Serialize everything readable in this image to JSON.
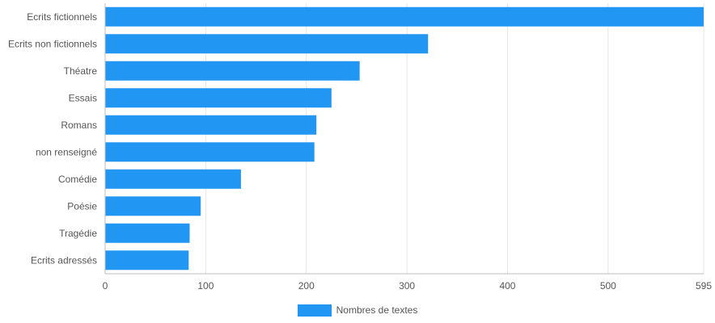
{
  "chart_data": {
    "type": "bar",
    "orientation": "horizontal",
    "categories": [
      "Ecrits fictionnels",
      "Ecrits non fictionnels",
      "Théatre",
      "Essais",
      "Romans",
      "non renseigné",
      "Comédie",
      "Poésie",
      "Tragédie",
      "Ecrits adressés"
    ],
    "series": [
      {
        "name": "Nombres de textes",
        "values": [
          595,
          321,
          253,
          225,
          210,
          208,
          135,
          95,
          84,
          83
        ]
      }
    ],
    "xlim": [
      0,
      595
    ],
    "x_ticks": [
      "0",
      "100",
      "200",
      "300",
      "400",
      "500",
      "595"
    ],
    "grid": true,
    "legend_position": "bottom",
    "bar_color": "#2196f3",
    "grid_color": "#e6e6e6",
    "axis_color": "#bdbdbd",
    "text_color": "#555555"
  }
}
